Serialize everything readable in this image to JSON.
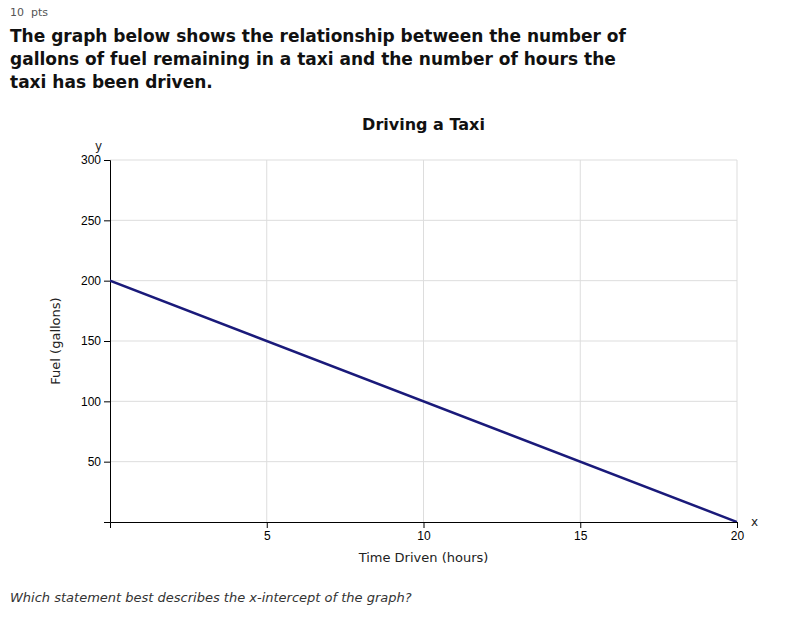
{
  "chart_data": {
    "type": "line",
    "title": "Driving a Taxi",
    "subtitle": "The graph below shows the relationship between the number of\ngallons of fuel remaining in a taxi and the number of hours the\ntaxi has been driven.",
    "annotations": [
      "10  pts",
      "Which statement best describes the x-intercept of the graph?",
      "y",
      "x"
    ],
    "xlabel": "Time Driven (hours)",
    "ylabel": "Fuel (gallons)",
    "x": [
      0,
      20
    ],
    "values": [
      200,
      0
    ],
    "color": "#1a1a7a",
    "xlim": [
      0,
      20
    ],
    "ylim": [
      0,
      300
    ],
    "xticks": [
      5,
      10,
      15,
      20
    ],
    "yticks": [
      50,
      100,
      150,
      200,
      250,
      300
    ],
    "grid": true
  }
}
